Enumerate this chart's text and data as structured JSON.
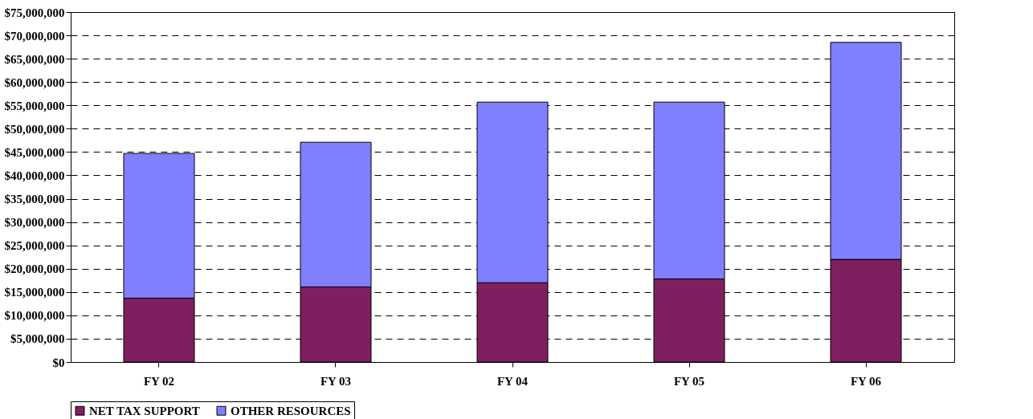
{
  "chart_data": {
    "type": "bar",
    "stacked": true,
    "categories": [
      "FY 02",
      "FY 03",
      "FY 04",
      "FY 05",
      "FY 06"
    ],
    "series": [
      {
        "name": "NET TAX SUPPORT",
        "color": "#7f1f5f",
        "values": [
          13700000,
          16100000,
          17000000,
          17800000,
          22000000
        ]
      },
      {
        "name": "OTHER RESOURCES",
        "color": "#8080ff",
        "values": [
          31000000,
          31000000,
          38700000,
          37900000,
          46500000
        ]
      }
    ],
    "ylim": [
      0,
      75000000
    ],
    "yticks": [
      {
        "value": 0,
        "label": "$0"
      },
      {
        "value": 5000000,
        "label": "$5,000,000"
      },
      {
        "value": 10000000,
        "label": "$10,000,000"
      },
      {
        "value": 15000000,
        "label": "$15,000,000"
      },
      {
        "value": 20000000,
        "label": "$20,000,000"
      },
      {
        "value": 25000000,
        "label": "$25,000,000"
      },
      {
        "value": 30000000,
        "label": "$30,000,000"
      },
      {
        "value": 35000000,
        "label": "$35,000,000"
      },
      {
        "value": 40000000,
        "label": "$40,000,000"
      },
      {
        "value": 45000000,
        "label": "$45,000,000"
      },
      {
        "value": 50000000,
        "label": "$50,000,000"
      },
      {
        "value": 55000000,
        "label": "$55,000,000"
      },
      {
        "value": 60000000,
        "label": "$60,000,000"
      },
      {
        "value": 65000000,
        "label": "$65,000,000"
      },
      {
        "value": 70000000,
        "label": "$70,000,000"
      },
      {
        "value": 75000000,
        "label": "$75,000,000"
      }
    ],
    "grid": "y",
    "legend": "bottom"
  }
}
